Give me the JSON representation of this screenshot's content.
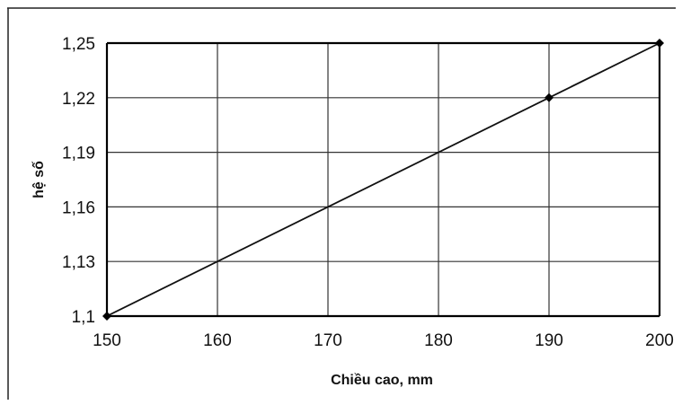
{
  "chart_data": {
    "type": "line",
    "title": "",
    "xlabel": "Chiều cao, mm",
    "ylabel": "hệ số",
    "xlim": [
      150,
      200
    ],
    "ylim": [
      1.1,
      1.25
    ],
    "x_ticks": [
      "150",
      "160",
      "170",
      "180",
      "190",
      "200"
    ],
    "y_ticks": [
      "1,1",
      "1,13",
      "1,16",
      "1,19",
      "1,22",
      "1,25"
    ],
    "grid": true,
    "legend": "none",
    "series": [
      {
        "x": [
          150,
          190,
          200
        ],
        "y": [
          1.1,
          1.22,
          1.25
        ],
        "markers": [
          true,
          true,
          true
        ]
      }
    ]
  }
}
